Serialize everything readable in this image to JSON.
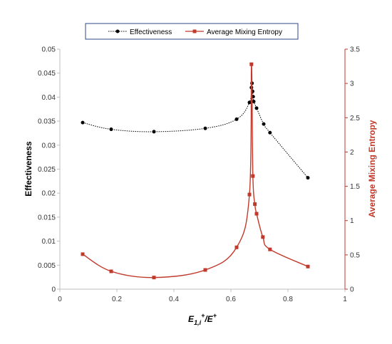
{
  "chart_data": {
    "type": "line",
    "xlabel": "E1,i+/E+",
    "xlabel_parts": {
      "main": "E",
      "sub": "1,i",
      "sup1": "+",
      "mid": "/E",
      "sup2": "+"
    },
    "xlim": [
      0,
      1
    ],
    "x_ticks": [
      "0",
      "0.2",
      "0.4",
      "0.6",
      "0.8",
      "1"
    ],
    "y_left": {
      "label": "Effectiveness",
      "lim": [
        0,
        0.05
      ],
      "ticks": [
        "0",
        "0.005",
        "0.01",
        "0.015",
        "0.02",
        "0.025",
        "0.03",
        "0.035",
        "0.04",
        "0.045",
        "0.05"
      ]
    },
    "y_right": {
      "label": "Average Mixing Entropy",
      "lim": [
        0,
        3.5
      ],
      "ticks": [
        "0",
        "0.5",
        "1",
        "1.5",
        "2",
        "2.5",
        "3",
        "3.5"
      ],
      "color": "#c0392b"
    },
    "legend_position": "top",
    "grid": false,
    "series": [
      {
        "name": "Effectiveness",
        "axis": "left",
        "color": "#000000",
        "line_style": "dotted",
        "marker": "circle",
        "x": [
          0.08,
          0.18,
          0.33,
          0.51,
          0.62,
          0.665,
          0.672,
          0.674,
          0.676,
          0.678,
          0.68,
          0.69,
          0.715,
          0.737,
          0.87
        ],
        "y": [
          0.0347,
          0.0333,
          0.0328,
          0.0335,
          0.0354,
          0.0389,
          0.042,
          0.0429,
          0.0412,
          0.0401,
          0.0391,
          0.0377,
          0.0344,
          0.0326,
          0.0232
        ]
      },
      {
        "name": "Average Mixing Entropy",
        "axis": "right",
        "color": "#c0392b",
        "line_style": "solid",
        "marker": "square",
        "x": [
          0.08,
          0.18,
          0.33,
          0.51,
          0.62,
          0.665,
          0.672,
          0.677,
          0.684,
          0.69,
          0.712,
          0.737,
          0.87
        ],
        "y": [
          0.51,
          0.26,
          0.17,
          0.28,
          0.61,
          1.38,
          3.28,
          1.65,
          1.24,
          1.1,
          0.76,
          0.58,
          0.33
        ]
      }
    ]
  }
}
